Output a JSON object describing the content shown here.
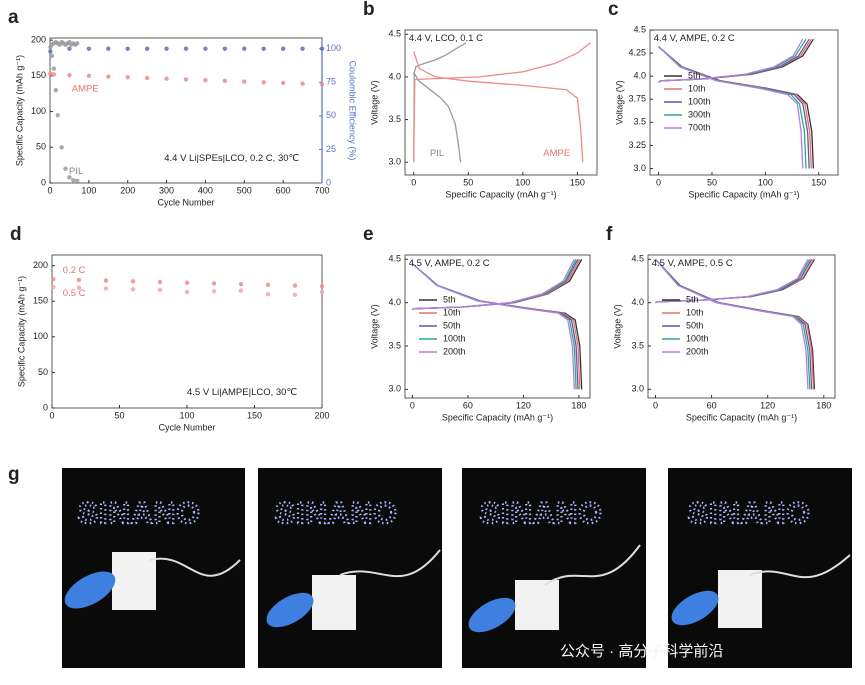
{
  "chart_data": [
    {
      "type": "scatter",
      "panel": "a",
      "xlabel": "Cycle Number",
      "ylabel": "Specific Capacity (mAh g⁻¹)",
      "y2label": "Coulombic Efficiency (%)",
      "y2_color": "#5b6fc4",
      "xlim": [
        0,
        700
      ],
      "xticks": [
        0,
        100,
        200,
        300,
        400,
        500,
        600,
        700
      ],
      "ylim": [
        0,
        203
      ],
      "yticks": [
        0,
        50,
        100,
        150,
        200
      ],
      "y2lim": [
        0,
        108
      ],
      "y2ticks": [
        0,
        25,
        50,
        75,
        100
      ],
      "annotations": [
        {
          "text": "4.4 V Li|SPEs|LCO, 0.2 C, 30℃",
          "color": "#222222"
        },
        {
          "text": "AMPE",
          "color": "#e8706f"
        },
        {
          "text": "PIL",
          "color": "#888888"
        }
      ],
      "series": [
        {
          "color": "#f08a8a",
          "x": [
            1,
            10,
            50,
            100,
            150,
            200,
            250,
            300,
            350,
            400,
            450,
            500,
            550,
            600,
            650,
            700
          ],
          "values": [
            153,
            152,
            151,
            150,
            149,
            148,
            147,
            146,
            145,
            144,
            143,
            142,
            141,
            140,
            139,
            138
          ]
        },
        {
          "color": "#9a9a9a",
          "x": [
            1,
            5,
            10,
            15,
            20,
            30,
            40,
            50,
            60,
            70
          ],
          "values": [
            190,
            178,
            160,
            130,
            95,
            50,
            20,
            8,
            4,
            3
          ]
        },
        {
          "color": "#5b6fc4",
          "axis": "y2",
          "x": [
            1,
            50,
            100,
            150,
            200,
            250,
            300,
            350,
            400,
            450,
            500,
            550,
            600,
            650,
            700
          ],
          "values": [
            98,
            100,
            100,
            100,
            100,
            100,
            100,
            100,
            100,
            100,
            100,
            100,
            100,
            100,
            100
          ]
        },
        {
          "color": "#9a9a9a",
          "axis": "y2",
          "x": [
            5,
            10,
            15,
            20,
            25,
            30,
            35,
            40,
            45,
            50,
            55,
            60,
            65,
            70
          ],
          "values": [
            103,
            104,
            105,
            104,
            103,
            105,
            104,
            103,
            104,
            105,
            103,
            104,
            103,
            104
          ]
        }
      ]
    },
    {
      "type": "line",
      "panel": "b",
      "xlabel": "Specific Capacity (mAh g⁻¹)",
      "ylabel": "Voltage (V)",
      "xlim": [
        -8,
        168
      ],
      "xticks": [
        0,
        50,
        100,
        150
      ],
      "ylim": [
        2.85,
        4.55
      ],
      "yticks": [
        {
          "value": 3,
          "label": "3.0"
        },
        3.5,
        {
          "value": 4,
          "label": "4.0"
        },
        4.5
      ],
      "annotations": [
        {
          "text": "4.4 V, LCO, 0.1 C",
          "color": "#222222"
        },
        {
          "text": "PIL",
          "color": "#888888"
        },
        {
          "text": "AMPE",
          "color": "#e8706f"
        }
      ],
      "series": [
        {
          "color": "#9a9a9a",
          "x": [
            0,
            0.5,
            2,
            10,
            20,
            30,
            40,
            48
          ],
          "values": [
            3.0,
            4.05,
            4.12,
            4.16,
            4.2,
            4.26,
            4.34,
            4.4
          ]
        },
        {
          "color": "#9a9a9a",
          "x": [
            0,
            5,
            15,
            25,
            32,
            38,
            41,
            43
          ],
          "values": [
            4.05,
            3.95,
            3.85,
            3.75,
            3.65,
            3.45,
            3.2,
            3.0
          ]
        },
        {
          "color": "#f08a8a",
          "x": [
            0,
            1,
            20,
            60,
            100,
            130,
            150,
            162
          ],
          "values": [
            3.0,
            3.97,
            3.98,
            4.0,
            4.06,
            4.16,
            4.28,
            4.4
          ]
        },
        {
          "color": "#f08a8a",
          "x": [
            0,
            5,
            20,
            50,
            100,
            140,
            150,
            153,
            155
          ],
          "values": [
            4.3,
            4.1,
            4.0,
            3.95,
            3.9,
            3.85,
            3.75,
            3.4,
            3.0
          ]
        }
      ]
    },
    {
      "type": "line",
      "panel": "c",
      "xlabel": "Specific Capacity (mAh g⁻¹)",
      "ylabel": "Voltage (V)",
      "legend": "center left",
      "xlim": [
        -8,
        168
      ],
      "xticks": [
        0,
        50,
        100,
        150
      ],
      "ylim": [
        2.93,
        4.5
      ],
      "yticks": [
        {
          "value": 3,
          "label": "3.0"
        },
        3.25,
        3.5,
        3.75,
        {
          "value": 4,
          "label": "4.0"
        },
        4.25,
        4.5
      ],
      "annotations": [
        {
          "text": "4.4 V, AMPE, 0.2 C",
          "color": "#222222"
        }
      ],
      "series": [
        {
          "name": "5th",
          "color": "#333333",
          "x": [
            0,
            2,
            43.5,
            87,
            116,
            135,
            145,
            null,
            0,
            22,
            58,
            101,
            130,
            139,
            143.5,
            145
          ],
          "values": [
            3.93,
            3.95,
            3.97,
            4.02,
            4.1,
            4.22,
            4.4,
            null,
            4.32,
            4.1,
            3.95,
            3.87,
            3.8,
            3.7,
            3.4,
            3.0
          ]
        },
        {
          "name": "10th",
          "color": "#e8706f",
          "x": [
            0,
            2,
            43,
            86,
            114,
            133,
            143,
            null,
            0,
            21,
            57,
            100,
            129,
            137,
            141.5,
            143
          ],
          "values": [
            3.93,
            3.95,
            3.97,
            4.02,
            4.1,
            4.22,
            4.4,
            null,
            4.32,
            4.1,
            3.95,
            3.87,
            3.8,
            3.7,
            3.4,
            3.0
          ]
        },
        {
          "name": "100th",
          "color": "#5a5aa8",
          "x": [
            0,
            2,
            42,
            85,
            113,
            131,
            141,
            null,
            0,
            21,
            56,
            99,
            127,
            135,
            139.5,
            141
          ],
          "values": [
            3.93,
            3.95,
            3.97,
            4.02,
            4.1,
            4.22,
            4.4,
            null,
            4.32,
            4.1,
            3.95,
            3.87,
            3.8,
            3.7,
            3.4,
            3.0
          ]
        },
        {
          "name": "300th",
          "color": "#2fa887",
          "x": [
            0,
            2,
            41,
            83,
            110,
            128,
            138,
            null,
            0,
            21,
            55,
            97,
            124,
            132,
            136.5,
            138
          ],
          "values": [
            3.93,
            3.95,
            3.97,
            4.02,
            4.1,
            4.22,
            4.4,
            null,
            4.32,
            4.1,
            3.95,
            3.87,
            3.8,
            3.7,
            3.4,
            3.0
          ]
        },
        {
          "name": "700th",
          "color": "#b57fe0",
          "x": [
            0,
            2,
            40,
            81,
            108,
            126,
            135,
            null,
            0,
            20,
            54,
            94,
            121,
            130,
            133.5,
            135
          ],
          "values": [
            3.93,
            3.95,
            3.97,
            4.02,
            4.1,
            4.22,
            4.4,
            null,
            4.32,
            4.1,
            3.95,
            3.87,
            3.8,
            3.7,
            3.4,
            3.0
          ]
        }
      ]
    },
    {
      "type": "scatter",
      "panel": "d",
      "xlabel": "Cycle Number",
      "ylabel": "Specific Capacity (mAh g⁻¹)",
      "xlim": [
        0,
        200
      ],
      "xticks": [
        0,
        50,
        100,
        150,
        200
      ],
      "ylim": [
        0,
        215
      ],
      "yticks": [
        0,
        50,
        100,
        150,
        200
      ],
      "annotations": [
        {
          "text": "0.2 C",
          "color": "#e8706f"
        },
        {
          "text": "0.5 C",
          "color": "#e8706f"
        },
        {
          "text": "4.5 V Li|AMPE|LCO, 30℃",
          "color": "#222222"
        }
      ],
      "series": [
        {
          "color": "#f08a8a",
          "x": [
            1,
            20,
            40,
            60,
            80,
            100,
            120,
            140,
            160,
            180,
            200
          ],
          "values": [
            181,
            180,
            179,
            178,
            177,
            176,
            175,
            174,
            173,
            172,
            171
          ]
        },
        {
          "color": "#f4a5a5",
          "x": [
            1,
            20,
            40,
            60,
            80,
            100,
            120,
            140,
            160,
            180,
            200
          ],
          "values": [
            170,
            169,
            168,
            167,
            166,
            163,
            164,
            165,
            160,
            159,
            163
          ]
        }
      ]
    },
    {
      "type": "line",
      "panel": "e",
      "xlabel": "Specific Capacity (mAh g⁻¹)",
      "ylabel": "Voltage (V)",
      "legend": "center left",
      "xlim": [
        -8,
        192
      ],
      "xticks": [
        0,
        60,
        120,
        180
      ],
      "ylim": [
        2.9,
        4.55
      ],
      "yticks": [
        {
          "value": 3,
          "label": "3.0"
        },
        3.5,
        {
          "value": 4,
          "label": "4.0"
        },
        4.5
      ],
      "annotations": [
        {
          "text": "4.5 V, AMPE, 0.2 C",
          "color": "#222222"
        }
      ],
      "series": [
        {
          "name": "5th",
          "color": "#333333",
          "x": [
            0,
            2,
            55,
            110,
            146,
            170,
            183,
            null,
            0,
            27,
            73,
            128,
            165,
            176,
            181,
            183
          ],
          "values": [
            3.92,
            3.93,
            3.95,
            4.0,
            4.1,
            4.25,
            4.5,
            null,
            4.45,
            4.2,
            4.02,
            3.93,
            3.88,
            3.8,
            3.5,
            3.0
          ]
        },
        {
          "name": "10th",
          "color": "#e8706f",
          "x": [
            0,
            2,
            54,
            109,
            145,
            168,
            181,
            null,
            0,
            27,
            72,
            127,
            163,
            174,
            179,
            181
          ],
          "values": [
            3.92,
            3.93,
            3.95,
            4.0,
            4.1,
            4.25,
            4.5,
            null,
            4.45,
            4.2,
            4.02,
            3.93,
            3.88,
            3.8,
            3.5,
            3.0
          ]
        },
        {
          "name": "50th",
          "color": "#5a5aa8",
          "x": [
            0,
            2,
            54,
            107,
            143,
            166,
            179,
            null,
            0,
            27,
            72,
            125,
            161,
            172,
            177,
            179
          ],
          "values": [
            3.92,
            3.93,
            3.95,
            4.0,
            4.1,
            4.25,
            4.5,
            null,
            4.45,
            4.2,
            4.02,
            3.93,
            3.88,
            3.8,
            3.5,
            3.0
          ]
        },
        {
          "name": "100th",
          "color": "#2fa887",
          "x": [
            0,
            2,
            53,
            106,
            142,
            165,
            177,
            null,
            0,
            27,
            71,
            124,
            159,
            170,
            175,
            177
          ],
          "values": [
            3.92,
            3.93,
            3.95,
            4.0,
            4.1,
            4.25,
            4.5,
            null,
            4.45,
            4.2,
            4.02,
            3.93,
            3.88,
            3.8,
            3.5,
            3.0
          ]
        },
        {
          "name": "200th",
          "color": "#b57fe0",
          "x": [
            0,
            2,
            53,
            105,
            140,
            163,
            175,
            null,
            0,
            26,
            70,
            123,
            158,
            168,
            173,
            175
          ],
          "values": [
            3.92,
            3.93,
            3.95,
            4.0,
            4.1,
            4.25,
            4.5,
            null,
            4.45,
            4.2,
            4.02,
            3.93,
            3.88,
            3.8,
            3.5,
            3.0
          ]
        }
      ]
    },
    {
      "type": "line",
      "panel": "f",
      "xlabel": "Specific Capacity (mAh g⁻¹)",
      "ylabel": "Voltage (V)",
      "legend": "center left",
      "xlim": [
        -8,
        192
      ],
      "xticks": [
        0,
        60,
        120,
        180
      ],
      "ylim": [
        2.9,
        4.55
      ],
      "yticks": [
        {
          "value": 3,
          "label": "3.0"
        },
        3.5,
        {
          "value": 4,
          "label": "4.0"
        },
        4.5
      ],
      "annotations": [
        {
          "text": "4.5 V, AMPE, 0.5 C",
          "color": "#222222"
        }
      ],
      "series": [
        {
          "name": "5th",
          "color": "#333333",
          "x": [
            0,
            2,
            51,
            102,
            136,
            158,
            170,
            null,
            0,
            26,
            68,
            119,
            153,
            163,
            168,
            170
          ],
          "values": [
            4.0,
            4.01,
            4.03,
            4.07,
            4.15,
            4.28,
            4.5,
            null,
            4.5,
            4.2,
            4.0,
            3.9,
            3.84,
            3.75,
            3.45,
            3.0
          ]
        },
        {
          "name": "10th",
          "color": "#e8706f",
          "x": [
            0,
            2,
            51,
            101,
            135,
            157,
            169,
            null,
            0,
            25,
            68,
            118,
            152,
            162,
            167,
            169
          ],
          "values": [
            4.0,
            4.01,
            4.03,
            4.07,
            4.15,
            4.28,
            4.5,
            null,
            4.5,
            4.2,
            4.0,
            3.9,
            3.84,
            3.75,
            3.45,
            3.0
          ]
        },
        {
          "name": "50th",
          "color": "#5a5aa8",
          "x": [
            0,
            2,
            50,
            100,
            134,
            155,
            167,
            null,
            0,
            25,
            67,
            117,
            150,
            160,
            165,
            167
          ],
          "values": [
            4.0,
            4.01,
            4.03,
            4.07,
            4.15,
            4.28,
            4.5,
            null,
            4.5,
            4.2,
            4.0,
            3.9,
            3.84,
            3.75,
            3.45,
            3.0
          ]
        },
        {
          "name": "100th",
          "color": "#2fa887",
          "x": [
            0,
            2,
            50,
            99,
            132,
            153,
            165,
            null,
            0,
            25,
            66,
            116,
            149,
            158,
            163,
            165
          ],
          "values": [
            4.0,
            4.01,
            4.03,
            4.07,
            4.15,
            4.28,
            4.5,
            null,
            4.5,
            4.2,
            4.0,
            3.9,
            3.84,
            3.75,
            3.45,
            3.0
          ]
        },
        {
          "name": "200th",
          "color": "#b57fe0",
          "x": [
            0,
            2,
            49,
            98,
            130,
            152,
            163,
            null,
            0,
            24,
            65,
            114,
            147,
            156,
            161,
            163
          ],
          "values": [
            4.0,
            4.01,
            4.03,
            4.07,
            4.15,
            4.28,
            4.5,
            null,
            4.5,
            4.2,
            4.0,
            3.9,
            3.84,
            3.75,
            3.45,
            3.0
          ]
        }
      ]
    }
  ],
  "panel_g": {
    "label": "g",
    "sign_text": "SINANO"
  },
  "watermark": "公众号 · 高分子科学前沿"
}
